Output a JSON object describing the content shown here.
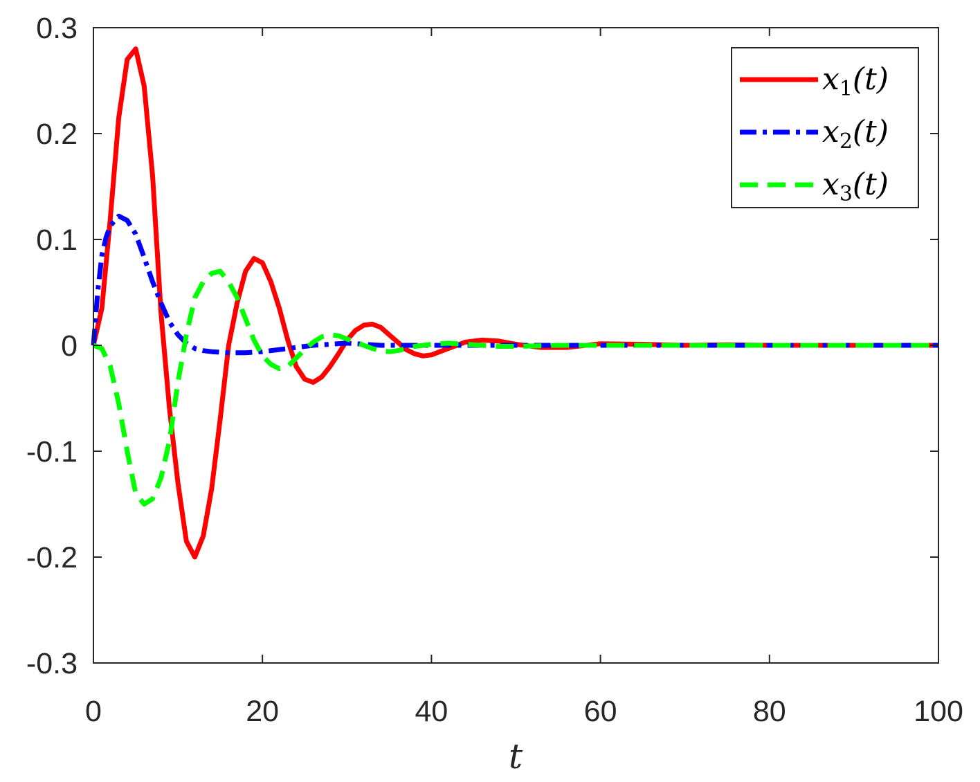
{
  "chart_data": {
    "type": "line",
    "title": "",
    "xlabel": "t",
    "ylabel": "",
    "xlim": [
      0,
      100
    ],
    "ylim": [
      -0.3,
      0.3
    ],
    "xticks": [
      0,
      20,
      40,
      60,
      80,
      100
    ],
    "xtick_labels": [
      "0",
      "20",
      "40",
      "60",
      "80",
      "100"
    ],
    "yticks": [
      -0.3,
      -0.2,
      -0.1,
      0,
      0.1,
      0.2,
      0.3
    ],
    "ytick_labels": [
      "-0.3",
      "-0.2",
      "-0.1",
      "0",
      "0.1",
      "0.2",
      "0.3"
    ],
    "grid": false,
    "legend_position": "top-right",
    "series": [
      {
        "name": "x1(t)",
        "legend": {
          "var": "x",
          "sub": "1",
          "arg": "(t)"
        },
        "color": "#ff0000",
        "style": "solid",
        "x": [
          0,
          1,
          2,
          3,
          4,
          5,
          6,
          7,
          8,
          9,
          10,
          11,
          12,
          13,
          14,
          15,
          16,
          17,
          18,
          19,
          20,
          21,
          22,
          23,
          24,
          25,
          26,
          27,
          28,
          29,
          30,
          31,
          32,
          33,
          34,
          35,
          36,
          37,
          38,
          39,
          40,
          42,
          44,
          46,
          48,
          50,
          53,
          56,
          60,
          65,
          70,
          75,
          80,
          85,
          90,
          95,
          100
        ],
        "y": [
          0,
          0.035,
          0.12,
          0.215,
          0.27,
          0.28,
          0.245,
          0.16,
          0.03,
          -0.06,
          -0.13,
          -0.185,
          -0.2,
          -0.18,
          -0.135,
          -0.07,
          0.0,
          0.04,
          0.07,
          0.082,
          0.078,
          0.06,
          0.035,
          0.005,
          -0.02,
          -0.032,
          -0.035,
          -0.03,
          -0.02,
          -0.008,
          0.005,
          0.014,
          0.019,
          0.02,
          0.017,
          0.01,
          0.003,
          -0.004,
          -0.008,
          -0.01,
          -0.009,
          -0.003,
          0.003,
          0.005,
          0.004,
          0.001,
          -0.002,
          -0.002,
          0.0015,
          0.001,
          0.0,
          0.0005,
          0.0,
          0.0,
          0.0,
          0.0,
          0.0
        ]
      },
      {
        "name": "x2(t)",
        "legend": {
          "var": "x",
          "sub": "2",
          "arg": "(t)"
        },
        "color": "#0000ff",
        "style": "dashdot",
        "x": [
          0,
          0.5,
          1,
          1.5,
          2,
          3,
          4,
          5,
          6,
          7,
          8,
          9,
          10,
          11,
          12,
          13,
          14,
          16,
          18,
          20,
          22,
          24,
          26,
          28,
          30,
          32,
          34,
          36,
          38,
          40,
          45,
          50,
          55,
          60,
          70,
          80,
          90,
          100
        ],
        "y": [
          0,
          0.05,
          0.085,
          0.102,
          0.113,
          0.122,
          0.118,
          0.105,
          0.083,
          0.06,
          0.04,
          0.022,
          0.01,
          0.002,
          -0.003,
          -0.005,
          -0.006,
          -0.007,
          -0.007,
          -0.006,
          -0.004,
          -0.002,
          0.0,
          0.001,
          0.002,
          0.001,
          0.0,
          0.0,
          0.0,
          0.0,
          0.0,
          0.0,
          0.0,
          0.0,
          0.0,
          0.0,
          0.0,
          0.0
        ]
      },
      {
        "name": "x3(t)",
        "legend": {
          "var": "x",
          "sub": "3",
          "arg": "(t)"
        },
        "color": "#00ff00",
        "style": "dashed",
        "x": [
          0,
          1,
          2,
          3,
          4,
          5,
          6,
          7,
          8,
          9,
          10,
          11,
          12,
          13,
          14,
          15,
          16,
          17,
          18,
          19,
          20,
          21,
          22,
          23,
          24,
          25,
          26,
          27,
          28,
          29,
          30,
          31,
          32,
          33,
          34,
          35,
          36,
          37,
          38,
          39,
          40,
          42,
          44,
          46,
          48,
          50,
          55,
          60,
          70,
          80,
          90,
          100
        ],
        "y": [
          0,
          -0.003,
          -0.02,
          -0.055,
          -0.1,
          -0.14,
          -0.15,
          -0.145,
          -0.125,
          -0.09,
          -0.035,
          0.01,
          0.045,
          0.06,
          0.068,
          0.07,
          0.06,
          0.045,
          0.025,
          0.005,
          -0.01,
          -0.018,
          -0.022,
          -0.02,
          -0.012,
          -0.004,
          0.003,
          0.008,
          0.01,
          0.009,
          0.006,
          0.003,
          0.0,
          -0.003,
          -0.005,
          -0.006,
          -0.005,
          -0.003,
          -0.001,
          0.0,
          0.001,
          0.002,
          0.001,
          0.0,
          -0.001,
          -0.001,
          0.0,
          0.0,
          0.0,
          0.0,
          0.0,
          0.0
        ]
      }
    ]
  }
}
